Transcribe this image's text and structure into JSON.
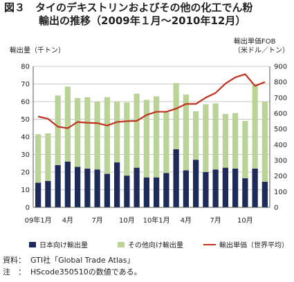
{
  "title_line1": "図３　タイのデキストリンおよびその他の化工でん粉",
  "title_line2": "輸出の推移（2009年１月～2010年12月）",
  "colors": {
    "japan": "#1e2a5a",
    "other": "#b9d496",
    "price": "#c0301e",
    "grid": "#b4b4b4"
  },
  "chart_data": {
    "type": "bar",
    "stacked": true,
    "title": "タイのデキストリンおよびその他の化工でん粉輸出の推移（2009年１月～2010年12月）",
    "ylabel": "輸出量（千トン）",
    "y2label": [
      "輸出単価FOB",
      "（米ドル／トン）"
    ],
    "ylim": [
      0,
      80
    ],
    "y_ticks": [
      0,
      10,
      20,
      30,
      40,
      50,
      60,
      70,
      80
    ],
    "y2lim": [
      0,
      900
    ],
    "y2_ticks": [
      0,
      100,
      200,
      300,
      400,
      500,
      600,
      700,
      800,
      900
    ],
    "grid": true,
    "legend_position": "bottom",
    "x_tick_labels": [
      "09年1月",
      "4月",
      "7月",
      "10月",
      "10年1月",
      "4月",
      "7月",
      "10月"
    ],
    "x_tick_index": [
      0,
      3,
      6,
      9,
      12,
      15,
      18,
      21
    ],
    "months": 24,
    "series": [
      {
        "name": "日本向け輸出量",
        "kind": "bar",
        "axis": "left",
        "values": [
          14,
          15,
          24,
          26,
          23,
          22,
          21.5,
          19,
          25.5,
          18,
          22.5,
          17,
          17,
          19.5,
          33,
          21,
          27,
          20,
          21.5,
          22.5,
          22,
          16.5,
          22,
          14.5
        ]
      },
      {
        "name": "その他向け輸出量",
        "kind": "bar",
        "axis": "left",
        "values": [
          27.5,
          27,
          39.5,
          42.5,
          39,
          40.5,
          38.5,
          43.5,
          34.5,
          41.5,
          42,
          44,
          46,
          34.5,
          37.5,
          43,
          27.5,
          38.5,
          37.5,
          30.5,
          31.5,
          32.5,
          47.5,
          45.5
        ]
      },
      {
        "name": "輸出単価（世界平均）",
        "kind": "line",
        "axis": "right",
        "values": [
          580,
          565,
          515,
          505,
          545,
          540,
          538,
          522,
          545,
          550,
          552,
          590,
          610,
          610,
          630,
          660,
          660,
          700,
          730,
          790,
          830,
          850,
          775,
          800
        ]
      }
    ]
  },
  "notes": [
    {
      "label": "資料：",
      "text": "GTI社「Global Trade Atlas」"
    },
    {
      "label": "注　：",
      "text": "HScode350510の数値である。"
    }
  ]
}
